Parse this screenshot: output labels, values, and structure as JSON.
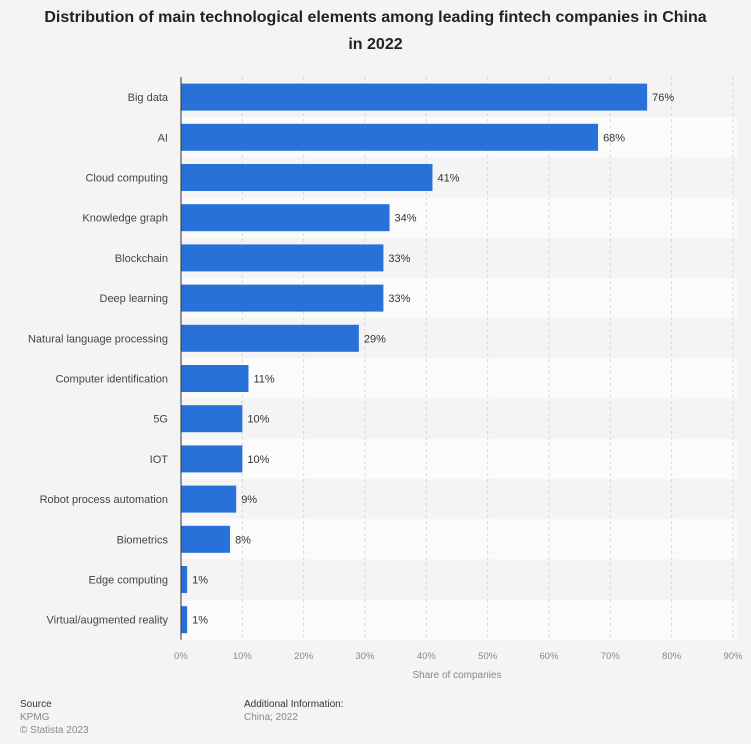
{
  "chart_data": {
    "type": "bar",
    "orientation": "horizontal",
    "title": "Distribution of main technological elements among leading fintech companies in China in 2022",
    "xlabel": "Share of companies",
    "ylabel": "",
    "xlim": [
      0,
      90
    ],
    "xticks": [
      "0%",
      "10%",
      "20%",
      "30%",
      "40%",
      "50%",
      "60%",
      "70%",
      "80%",
      "90%"
    ],
    "grid": true,
    "categories": [
      "Big data",
      "AI",
      "Cloud computing",
      "Knowledge graph",
      "Blockchain",
      "Deep learning",
      "Natural language processing",
      "Computer identification",
      "5G",
      "IOT",
      "Robot process automation",
      "Biometrics",
      "Edge computing",
      "Virtual/augmented reality"
    ],
    "values": [
      76,
      68,
      41,
      34,
      33,
      33,
      29,
      11,
      10,
      10,
      9,
      8,
      1,
      1
    ],
    "value_labels": [
      "76%",
      "68%",
      "41%",
      "34%",
      "33%",
      "33%",
      "29%",
      "11%",
      "10%",
      "10%",
      "9%",
      "8%",
      "1%",
      "1%"
    ],
    "bar_color": "#2771d9"
  },
  "footer": {
    "source_label": "Source",
    "source_value": "KPMG",
    "copyright": "© Statista 2023",
    "info_label": "Additional Information:",
    "info_value": "China; 2022"
  }
}
